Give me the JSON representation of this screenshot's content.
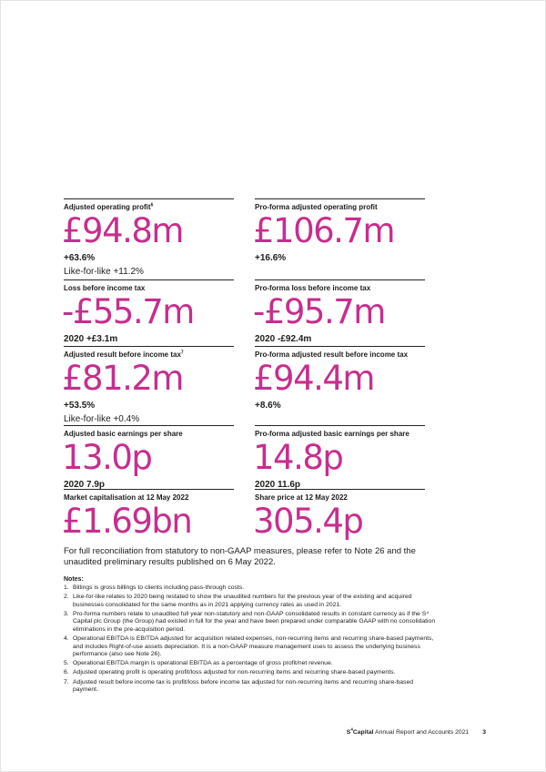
{
  "accent_color": "#c72e8e",
  "text_color": "#1d1d1b",
  "metrics": [
    {
      "label": "Adjusted operating profit",
      "label_sup": "6",
      "value": "£94.8m",
      "change": "+63.6%",
      "comparative": "Like-for-like +11.2%"
    },
    {
      "label": "Pro-forma adjusted operating profit",
      "value": "£106.7m",
      "change": "+16.6%"
    },
    {
      "label": "Loss before income tax",
      "value": "-£55.7m",
      "change": "2020 +£3.1m"
    },
    {
      "label": "Pro-forma loss before income tax",
      "value": "-£95.7m",
      "change": "2020 -£92.4m"
    },
    {
      "label": "Adjusted result before income tax",
      "label_sup": "7",
      "value": "£81.2m",
      "change": "+53.5%",
      "comparative": "Like-for-like +0.4%"
    },
    {
      "label": "Pro-forma adjusted result before income tax",
      "value": "£94.4m",
      "change": "+8.6%"
    },
    {
      "label": "Adjusted basic earnings per share",
      "value": "13.0p",
      "change": "2020 7.9p"
    },
    {
      "label": "Pro-forma adjusted basic earnings per share",
      "value": "14.8p",
      "change": "2020 11.6p"
    },
    {
      "label": "Market capitalisation at 12 May 2022",
      "value": "£1.69bn"
    },
    {
      "label": "Share price at 12 May 2022",
      "value": "305.4p"
    }
  ],
  "reconciliation_note": "For full reconciliation from statutory to non-GAAP measures, please refer to Note 26 and the unaudited preliminary results published on 6 May 2022.",
  "notes": {
    "heading": "Notes:",
    "items": [
      "Billings is gross billings to clients including pass-through costs.",
      "Like-for-like relates to 2020 being restated to show the unaudited numbers for the previous year of the existing and acquired businesses consolidated for the same months as in 2021 applying currency rates as used in 2021.",
      "Pro-forma numbers relate to unaudited full year non-statutory and non-GAAP consolidated results in constant currency as if the S⁴ Capital plc Group (the Group) had existed in full for the year and have been prepared under comparable GAAP with no consolidation eliminations in the pre-acquisition period.",
      "Operational EBITDA is EBITDA adjusted for acquisition related expenses, non-recurring items and recurring share-based payments, and includes Right-of-use assets depreciation. It is a non-GAAP measure management uses to assess the underlying business performance (also see Note 26).",
      "Operational EBITDA margin is operational EBITDA as a percentage of gross profit/net revenue.",
      "Adjusted operating profit is operating profit/loss adjusted for non-recurring items and recurring share-based payments.",
      "Adjusted result before income tax is profit/loss before income tax adjusted for non-recurring items and recurring share-based payment."
    ]
  },
  "footer": {
    "brand_s": "S",
    "brand_sup": "4",
    "brand_capital": "Capital",
    "report_title": " Annual Report and Accounts 2021",
    "page_number": "3"
  }
}
